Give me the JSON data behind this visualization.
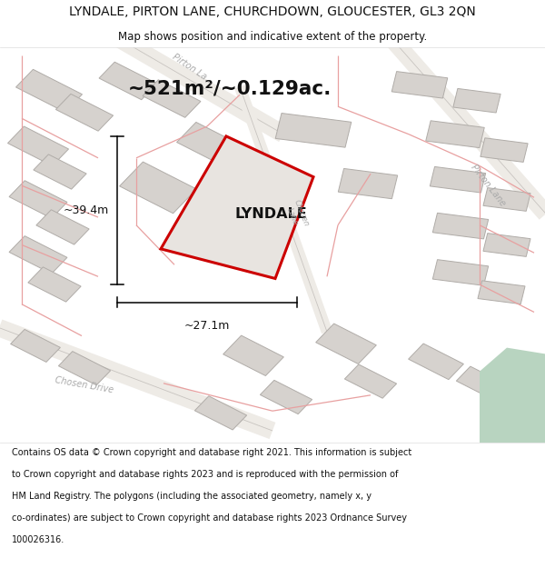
{
  "title_line1": "LYNDALE, PIRTON LANE, CHURCHDOWN, GLOUCESTER, GL3 2QN",
  "title_line2": "Map shows position and indicative extent of the property.",
  "area_text": "~521m²/~0.129ac.",
  "property_label": "LYNDALE",
  "dim_height": "~39.4m",
  "dim_width": "~27.1m",
  "footer_lines": [
    "Contains OS data © Crown copyright and database right 2021. This information is subject",
    "to Crown copyright and database rights 2023 and is reproduced with the permission of",
    "HM Land Registry. The polygons (including the associated geometry, namely x, y",
    "co-ordinates) are subject to Crown copyright and database rights 2023 Ordnance Survey",
    "100026316."
  ],
  "map_bg": "#f7f3ef",
  "building_fill": "#d6d2ce",
  "building_edge": "#b0aca8",
  "property_fill": "#e8e4e0",
  "property_edge": "#cc0000",
  "green_fill": "#b8d4c0",
  "road_pink": "#e8a0a0",
  "street_label_color": "#aaaaaa",
  "white": "#ffffff"
}
